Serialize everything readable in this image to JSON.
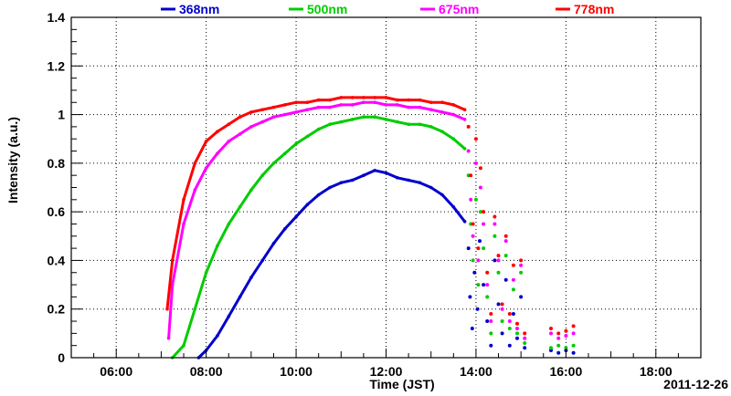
{
  "chart_data": {
    "type": "scatter",
    "title": "",
    "xlabel": "Time (JST)",
    "ylabel": "Intensity (a.u.)",
    "date_label": "2011-12-26",
    "x_ticks": [
      "06:00",
      "08:00",
      "10:00",
      "12:00",
      "14:00",
      "16:00",
      "18:00"
    ],
    "y_ticks": [
      "0",
      "0.2",
      "0.4",
      "0.6",
      "0.8",
      "1",
      "1.2",
      "1.4"
    ],
    "xlim": [
      "05:00",
      "19:00"
    ],
    "ylim": [
      0,
      1.4
    ],
    "grid": true,
    "legend_position": "top",
    "series": [
      {
        "name": "368nm",
        "color": "#0000cc",
        "points": [
          [
            "07:50",
            0.0
          ],
          [
            "08:00",
            0.03
          ],
          [
            "08:15",
            0.09
          ],
          [
            "08:30",
            0.17
          ],
          [
            "08:45",
            0.25
          ],
          [
            "09:00",
            0.33
          ],
          [
            "09:15",
            0.4
          ],
          [
            "09:30",
            0.47
          ],
          [
            "09:45",
            0.53
          ],
          [
            "10:00",
            0.58
          ],
          [
            "10:15",
            0.63
          ],
          [
            "10:30",
            0.67
          ],
          [
            "10:45",
            0.7
          ],
          [
            "11:00",
            0.72
          ],
          [
            "11:15",
            0.73
          ],
          [
            "11:30",
            0.75
          ],
          [
            "11:45",
            0.77
          ],
          [
            "12:00",
            0.76
          ],
          [
            "12:15",
            0.74
          ],
          [
            "12:30",
            0.73
          ],
          [
            "12:45",
            0.72
          ],
          [
            "13:00",
            0.7
          ],
          [
            "13:15",
            0.67
          ],
          [
            "13:30",
            0.62
          ],
          [
            "13:45",
            0.56
          ]
        ],
        "scatter_points": [
          [
            "13:50",
            0.45
          ],
          [
            "13:52",
            0.25
          ],
          [
            "13:55",
            0.12
          ],
          [
            "13:58",
            0.35
          ],
          [
            "14:02",
            0.2
          ],
          [
            "14:05",
            0.48
          ],
          [
            "14:10",
            0.3
          ],
          [
            "14:15",
            0.15
          ],
          [
            "14:20",
            0.05
          ],
          [
            "14:25",
            0.4
          ],
          [
            "14:30",
            0.22
          ],
          [
            "14:35",
            0.1
          ],
          [
            "14:40",
            0.32
          ],
          [
            "14:45",
            0.05
          ],
          [
            "14:50",
            0.18
          ],
          [
            "14:55",
            0.08
          ],
          [
            "15:00",
            0.25
          ],
          [
            "15:05",
            0.04
          ],
          [
            "15:40",
            0.03
          ],
          [
            "15:50",
            0.02
          ],
          [
            "16:00",
            0.03
          ],
          [
            "16:10",
            0.02
          ]
        ]
      },
      {
        "name": "500nm",
        "color": "#00cc00",
        "points": [
          [
            "07:15",
            0.0
          ],
          [
            "07:30",
            0.05
          ],
          [
            "07:45",
            0.2
          ],
          [
            "08:00",
            0.35
          ],
          [
            "08:15",
            0.46
          ],
          [
            "08:30",
            0.55
          ],
          [
            "08:45",
            0.62
          ],
          [
            "09:00",
            0.69
          ],
          [
            "09:15",
            0.75
          ],
          [
            "09:30",
            0.8
          ],
          [
            "09:45",
            0.84
          ],
          [
            "10:00",
            0.88
          ],
          [
            "10:15",
            0.91
          ],
          [
            "10:30",
            0.94
          ],
          [
            "10:45",
            0.96
          ],
          [
            "11:00",
            0.97
          ],
          [
            "11:15",
            0.98
          ],
          [
            "11:30",
            0.99
          ],
          [
            "11:45",
            0.99
          ],
          [
            "12:00",
            0.98
          ],
          [
            "12:15",
            0.97
          ],
          [
            "12:30",
            0.96
          ],
          [
            "12:45",
            0.96
          ],
          [
            "13:00",
            0.95
          ],
          [
            "13:15",
            0.93
          ],
          [
            "13:30",
            0.9
          ],
          [
            "13:45",
            0.86
          ]
        ],
        "scatter_points": [
          [
            "13:50",
            0.75
          ],
          [
            "13:53",
            0.55
          ],
          [
            "13:56",
            0.4
          ],
          [
            "14:00",
            0.65
          ],
          [
            "14:03",
            0.3
          ],
          [
            "14:06",
            0.6
          ],
          [
            "14:10",
            0.45
          ],
          [
            "14:15",
            0.25
          ],
          [
            "14:20",
            0.1
          ],
          [
            "14:25",
            0.5
          ],
          [
            "14:30",
            0.35
          ],
          [
            "14:35",
            0.15
          ],
          [
            "14:40",
            0.42
          ],
          [
            "14:45",
            0.12
          ],
          [
            "14:50",
            0.28
          ],
          [
            "14:55",
            0.1
          ],
          [
            "15:00",
            0.35
          ],
          [
            "15:05",
            0.06
          ],
          [
            "15:40",
            0.04
          ],
          [
            "15:50",
            0.05
          ],
          [
            "16:00",
            0.04
          ],
          [
            "16:10",
            0.05
          ]
        ]
      },
      {
        "name": "675nm",
        "color": "#ff00ff",
        "points": [
          [
            "07:10",
            0.08
          ],
          [
            "07:15",
            0.3
          ],
          [
            "07:30",
            0.55
          ],
          [
            "07:45",
            0.69
          ],
          [
            "08:00",
            0.78
          ],
          [
            "08:15",
            0.84
          ],
          [
            "08:30",
            0.89
          ],
          [
            "08:45",
            0.92
          ],
          [
            "09:00",
            0.95
          ],
          [
            "09:15",
            0.97
          ],
          [
            "09:30",
            0.99
          ],
          [
            "09:45",
            1.0
          ],
          [
            "10:00",
            1.01
          ],
          [
            "10:15",
            1.02
          ],
          [
            "10:30",
            1.03
          ],
          [
            "10:45",
            1.03
          ],
          [
            "11:00",
            1.04
          ],
          [
            "11:15",
            1.04
          ],
          [
            "11:30",
            1.05
          ],
          [
            "11:45",
            1.05
          ],
          [
            "12:00",
            1.04
          ],
          [
            "12:15",
            1.04
          ],
          [
            "12:30",
            1.03
          ],
          [
            "12:45",
            1.03
          ],
          [
            "13:00",
            1.02
          ],
          [
            "13:15",
            1.01
          ],
          [
            "13:30",
            1.0
          ],
          [
            "13:45",
            0.98
          ]
        ],
        "scatter_points": [
          [
            "13:50",
            0.85
          ],
          [
            "13:53",
            0.65
          ],
          [
            "13:56",
            0.5
          ],
          [
            "14:00",
            0.8
          ],
          [
            "14:03",
            0.4
          ],
          [
            "14:06",
            0.7
          ],
          [
            "14:10",
            0.55
          ],
          [
            "14:15",
            0.3
          ],
          [
            "14:20",
            0.15
          ],
          [
            "14:25",
            0.55
          ],
          [
            "14:30",
            0.4
          ],
          [
            "14:35",
            0.2
          ],
          [
            "14:40",
            0.48
          ],
          [
            "14:45",
            0.15
          ],
          [
            "14:50",
            0.32
          ],
          [
            "14:55",
            0.12
          ],
          [
            "15:00",
            0.38
          ],
          [
            "15:05",
            0.08
          ],
          [
            "15:40",
            0.1
          ],
          [
            "15:50",
            0.08
          ],
          [
            "16:00",
            0.09
          ],
          [
            "16:10",
            0.1
          ]
        ]
      },
      {
        "name": "778nm",
        "color": "#ff0000",
        "points": [
          [
            "07:08",
            0.2
          ],
          [
            "07:15",
            0.4
          ],
          [
            "07:30",
            0.65
          ],
          [
            "07:45",
            0.8
          ],
          [
            "08:00",
            0.89
          ],
          [
            "08:15",
            0.93
          ],
          [
            "08:30",
            0.96
          ],
          [
            "08:45",
            0.99
          ],
          [
            "09:00",
            1.01
          ],
          [
            "09:15",
            1.02
          ],
          [
            "09:30",
            1.03
          ],
          [
            "09:45",
            1.04
          ],
          [
            "10:00",
            1.05
          ],
          [
            "10:15",
            1.05
          ],
          [
            "10:30",
            1.06
          ],
          [
            "10:45",
            1.06
          ],
          [
            "11:00",
            1.07
          ],
          [
            "11:15",
            1.07
          ],
          [
            "11:30",
            1.07
          ],
          [
            "11:45",
            1.07
          ],
          [
            "12:00",
            1.07
          ],
          [
            "12:15",
            1.06
          ],
          [
            "12:30",
            1.06
          ],
          [
            "12:45",
            1.06
          ],
          [
            "13:00",
            1.05
          ],
          [
            "13:15",
            1.05
          ],
          [
            "13:30",
            1.04
          ],
          [
            "13:45",
            1.02
          ]
        ],
        "scatter_points": [
          [
            "13:50",
            0.95
          ],
          [
            "13:53",
            0.75
          ],
          [
            "13:56",
            0.55
          ],
          [
            "14:00",
            0.9
          ],
          [
            "14:03",
            0.45
          ],
          [
            "14:06",
            0.78
          ],
          [
            "14:10",
            0.6
          ],
          [
            "14:15",
            0.35
          ],
          [
            "14:20",
            0.18
          ],
          [
            "14:25",
            0.58
          ],
          [
            "14:30",
            0.42
          ],
          [
            "14:35",
            0.22
          ],
          [
            "14:40",
            0.5
          ],
          [
            "14:45",
            0.18
          ],
          [
            "14:50",
            0.38
          ],
          [
            "14:55",
            0.14
          ],
          [
            "15:00",
            0.4
          ],
          [
            "15:05",
            0.1
          ],
          [
            "15:40",
            0.12
          ],
          [
            "15:50",
            0.1
          ],
          [
            "16:00",
            0.11
          ],
          [
            "16:10",
            0.13
          ]
        ]
      }
    ]
  }
}
